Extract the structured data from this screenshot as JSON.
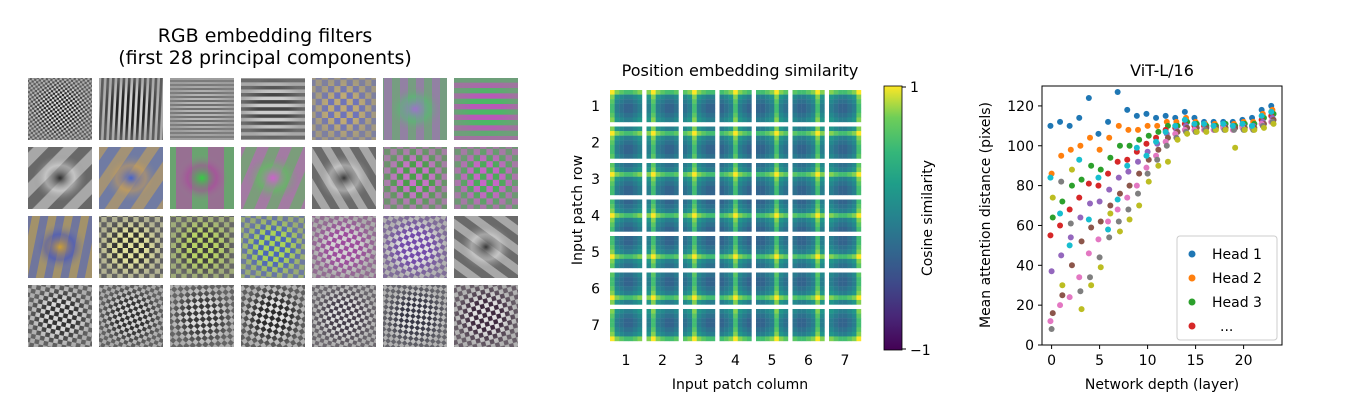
{
  "chart_data": [
    {
      "type": "image-grid",
      "title_line1": "RGB embedding filters",
      "title_line2": "(first 28 principal components)",
      "grid_rows": 4,
      "grid_cols": 7,
      "filters": [
        {
          "kind": "checker",
          "c1": "#111111",
          "c2": "#e8e8e8",
          "freq": 14,
          "angle": 0.15
        },
        {
          "kind": "stripes",
          "c1": "#111111",
          "c2": "#dddddd",
          "freq": 12,
          "angle": 0.05
        },
        {
          "kind": "stripes",
          "c1": "#6a6a6a",
          "c2": "#bdbdbd",
          "freq": 16,
          "angle": 1.57
        },
        {
          "kind": "stripes",
          "c1": "#3a3a3a",
          "c2": "#d8d8d8",
          "freq": 9,
          "angle": 1.57
        },
        {
          "kind": "rings",
          "c1": "#c8b070",
          "c2": "#6a70c0",
          "freq": 5,
          "angle": 1.57
        },
        {
          "kind": "blob",
          "c1": "#a070d0",
          "c2": "#50c070",
          "freq": 4,
          "angle": 0
        },
        {
          "kind": "stripes",
          "c1": "#c050c0",
          "c2": "#40c060",
          "freq": 6,
          "angle": 1.57
        },
        {
          "kind": "diag",
          "c1": "#2a2a2a",
          "c2": "#e0e0e0",
          "freq": 3,
          "angle": 0.78
        },
        {
          "kind": "blob",
          "c1": "#4060d0",
          "c2": "#d0a050",
          "freq": 3,
          "angle": 0.6
        },
        {
          "kind": "blob",
          "c1": "#30d040",
          "c2": "#b040a0",
          "freq": 2,
          "angle": 0
        },
        {
          "kind": "blob",
          "c1": "#d060d0",
          "c2": "#60c060",
          "freq": 3,
          "angle": 0.4
        },
        {
          "kind": "diag",
          "c1": "#303030",
          "c2": "#dcdcdc",
          "freq": 4,
          "angle": 2.6
        },
        {
          "kind": "checker",
          "c1": "#40a040",
          "c2": "#d070d0",
          "freq": 5,
          "angle": 0
        },
        {
          "kind": "checker",
          "c1": "#d060d0",
          "c2": "#40b050",
          "freq": 5,
          "angle": 0
        },
        {
          "kind": "blob",
          "c1": "#d0a030",
          "c2": "#4050c0",
          "freq": 4,
          "angle": 0.2
        },
        {
          "kind": "checker",
          "c1": "#202020",
          "c2": "#f0f0a0",
          "freq": 6,
          "angle": 0
        },
        {
          "kind": "checker",
          "c1": "#303030",
          "c2": "#c0e060",
          "freq": 6,
          "angle": 0
        },
        {
          "kind": "checker",
          "c1": "#4060c0",
          "c2": "#b0e050",
          "freq": 6,
          "angle": 0.1
        },
        {
          "kind": "checker",
          "c1": "#a040a0",
          "c2": "#e0e0e0",
          "freq": 7,
          "angle": 0.3
        },
        {
          "kind": "checker",
          "c1": "#7040b0",
          "c2": "#f0f0f0",
          "freq": 7,
          "angle": 0.5
        },
        {
          "kind": "diag",
          "c1": "#303030",
          "c2": "#e0e0e0",
          "freq": 4,
          "angle": 2.2
        },
        {
          "kind": "checker",
          "c1": "#222222",
          "c2": "#e6e6e6",
          "freq": 7,
          "angle": 0.2
        },
        {
          "kind": "checker",
          "c1": "#222222",
          "c2": "#e0e0e0",
          "freq": 8,
          "angle": 0.4
        },
        {
          "kind": "checker",
          "c1": "#2a2a2a",
          "c2": "#e8e8e8",
          "freq": 7,
          "angle": 0.7
        },
        {
          "kind": "checker",
          "c1": "#1a1a1a",
          "c2": "#f0f0f0",
          "freq": 7,
          "angle": 1.0
        },
        {
          "kind": "checker",
          "c1": "#3a3040",
          "c2": "#ececec",
          "freq": 8,
          "angle": 0.3
        },
        {
          "kind": "checker",
          "c1": "#2a2a3a",
          "c2": "#f0f0f0",
          "freq": 8,
          "angle": 0.9
        },
        {
          "kind": "checker",
          "c1": "#301830",
          "c2": "#f0f0f0",
          "freq": 7,
          "angle": 1.3
        }
      ]
    },
    {
      "type": "heatmap",
      "title": "Position embedding similarity",
      "xlabel": "Input patch column",
      "ylabel": "Input patch row",
      "rows": 7,
      "cols": 7,
      "x_ticks": [
        "1",
        "2",
        "3",
        "4",
        "5",
        "6",
        "7"
      ],
      "y_ticks": [
        "1",
        "2",
        "3",
        "4",
        "5",
        "6",
        "7"
      ],
      "colorbar_label": "Cosine similarity",
      "colorbar_max": "1",
      "colorbar_min": "−1",
      "vmin": -1,
      "vmax": 1
    },
    {
      "type": "scatter",
      "title": "ViT-L/16",
      "xlabel": "Network depth (layer)",
      "ylabel": "Mean attention distance (pixels)",
      "xlim": [
        -1,
        24
      ],
      "ylim": [
        0,
        130
      ],
      "x_ticks": [
        0,
        5,
        10,
        15,
        20
      ],
      "y_ticks": [
        0,
        20,
        40,
        60,
        80,
        100,
        120
      ],
      "legend_position": "lower-right",
      "legend": [
        {
          "label": "Head 1",
          "color": "#1f77b4"
        },
        {
          "label": "Head 2",
          "color": "#ff7f0e"
        },
        {
          "label": "Head 3",
          "color": "#2ca02c"
        },
        {
          "label": "...",
          "color": "#d62728"
        }
      ],
      "head_colors": [
        "#1f77b4",
        "#ff7f0e",
        "#2ca02c",
        "#d62728",
        "#9467bd",
        "#8c564b",
        "#e377c2",
        "#7f7f7f",
        "#bcbd22",
        "#17becf"
      ],
      "points_by_layer": [
        [
          110,
          86,
          64,
          55,
          37,
          16,
          12,
          8,
          74,
          84
        ],
        [
          112,
          95,
          72,
          60,
          45,
          25,
          20,
          82,
          30,
          66
        ],
        [
          110,
          98,
          80,
          68,
          54,
          40,
          24,
          61,
          88,
          50
        ],
        [
          114,
          100,
          83,
          74,
          64,
          52,
          34,
          27,
          18,
          93
        ],
        [
          124,
          104,
          90,
          81,
          71,
          59,
          46,
          34,
          30,
          63
        ],
        [
          106,
          98,
          88,
          80,
          72,
          62,
          53,
          44,
          39,
          84
        ],
        [
          112,
          104,
          94,
          86,
          78,
          70,
          62,
          54,
          66,
          58
        ],
        [
          127,
          110,
          100,
          92,
          84,
          76,
          68,
          62,
          57,
          73
        ],
        [
          118,
          108,
          100,
          93,
          87,
          80,
          74,
          68,
          63,
          90
        ],
        [
          115,
          108,
          103,
          97,
          92,
          86,
          80,
          76,
          70,
          99
        ],
        [
          116,
          110,
          105,
          101,
          97,
          93,
          89,
          86,
          82,
          95
        ],
        [
          114,
          110,
          107,
          104,
          101,
          98,
          95,
          93,
          90,
          102
        ],
        [
          115,
          112,
          110,
          108,
          106,
          104,
          102,
          100,
          92,
          107
        ],
        [
          114,
          112,
          110,
          109,
          108,
          107,
          106,
          104,
          103,
          110
        ],
        [
          117,
          114,
          112,
          111,
          110,
          109,
          108,
          107,
          106,
          113
        ],
        [
          114,
          112,
          111,
          110,
          109,
          109,
          108,
          107,
          107,
          111
        ],
        [
          112,
          111,
          110,
          110,
          109,
          109,
          108,
          108,
          107,
          111
        ],
        [
          112,
          111,
          110,
          110,
          109,
          109,
          108,
          108,
          108,
          110
        ],
        [
          112,
          111,
          111,
          110,
          110,
          109,
          109,
          108,
          108,
          111
        ],
        [
          112,
          111,
          110,
          110,
          109,
          109,
          108,
          108,
          99,
          110
        ],
        [
          113,
          112,
          111,
          110,
          110,
          109,
          109,
          108,
          108,
          111
        ],
        [
          114,
          112,
          111,
          110,
          110,
          109,
          109,
          108,
          108,
          110
        ],
        [
          118,
          116,
          114,
          113,
          112,
          111,
          111,
          110,
          109,
          115
        ],
        [
          120,
          118,
          116,
          115,
          114,
          113,
          112,
          112,
          111,
          117
        ]
      ]
    }
  ]
}
